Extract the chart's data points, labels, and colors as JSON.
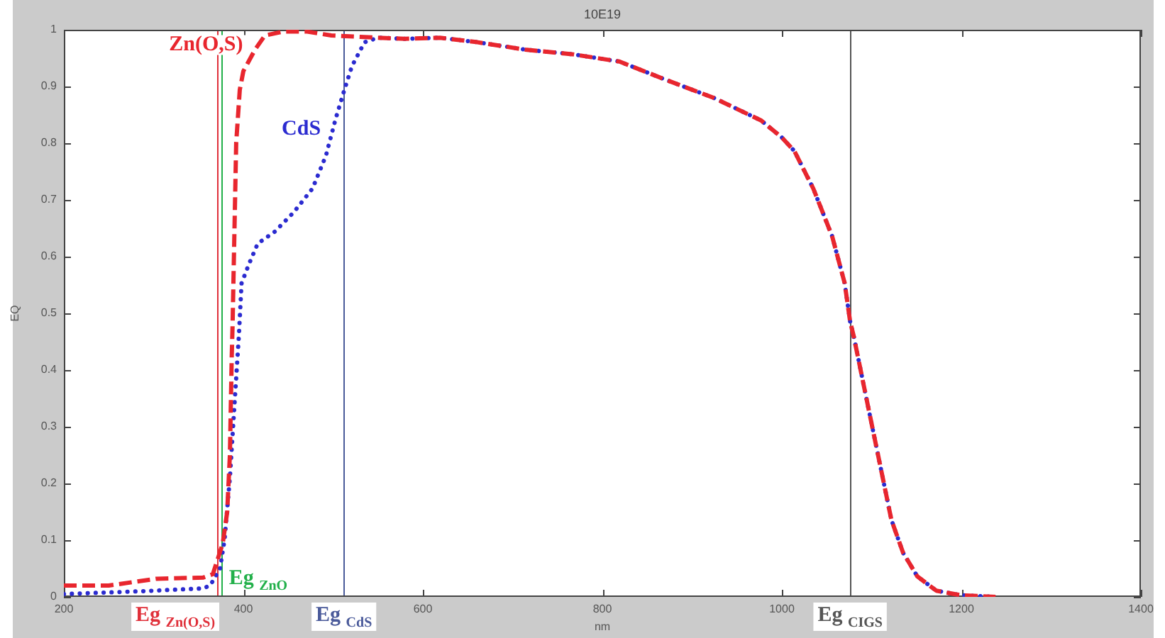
{
  "chart_data": {
    "type": "line",
    "title": "10E19",
    "xlabel": "nm",
    "ylabel": "EQ",
    "xlim": [
      200,
      1400
    ],
    "xticks": [
      200,
      400,
      600,
      800,
      1000,
      1200,
      1400
    ],
    "ylim": [
      0,
      1
    ],
    "yticks": [
      0,
      0.1,
      0.2,
      0.3,
      0.4,
      0.5,
      0.6,
      0.7,
      0.8,
      0.9,
      1
    ],
    "series": [
      {
        "name": "Zn(O,S)",
        "color": "#e8262e",
        "line_style": "dashed",
        "x": [
          200,
          250,
          303,
          355,
          366,
          377,
          382,
          385,
          387,
          388,
          390,
          392,
          396,
          400,
          413,
          424,
          445,
          470,
          498,
          550,
          580,
          619,
          661,
          714,
          766,
          819,
          872,
          924,
          977,
          1000,
          1014,
          1035,
          1056,
          1070,
          1076,
          1080,
          1096,
          1109,
          1122,
          1135,
          1151,
          1172,
          1199,
          1238
        ],
        "values": [
          0.02,
          0.02,
          0.032,
          0.034,
          0.04,
          0.094,
          0.15,
          0.25,
          0.42,
          0.48,
          0.64,
          0.8,
          0.894,
          0.927,
          0.965,
          0.99,
          0.997,
          0.997,
          0.99,
          0.986,
          0.984,
          0.986,
          0.978,
          0.965,
          0.957,
          0.944,
          0.911,
          0.88,
          0.84,
          0.81,
          0.786,
          0.72,
          0.636,
          0.553,
          0.486,
          0.46,
          0.336,
          0.236,
          0.136,
          0.078,
          0.036,
          0.011,
          0.003,
          0
        ]
      },
      {
        "name": "CdS",
        "color": "#2b2bd0",
        "line_style": "dotted",
        "x": [
          200,
          287,
          355,
          363,
          374,
          379,
          385,
          390,
          395,
          398,
          406,
          416,
          435,
          456,
          477,
          492,
          503,
          511,
          521,
          535,
          550,
          580,
          619,
          661,
          714,
          766,
          819,
          872,
          924,
          977,
          1000,
          1014,
          1035,
          1056,
          1070,
          1076,
          1080,
          1096,
          1109,
          1122,
          1135,
          1151,
          1172,
          1199,
          1238
        ],
        "values": [
          0.005,
          0.01,
          0.015,
          0.02,
          0.05,
          0.1,
          0.21,
          0.336,
          0.46,
          0.553,
          0.586,
          0.623,
          0.644,
          0.678,
          0.72,
          0.778,
          0.844,
          0.886,
          0.936,
          0.978,
          0.986,
          0.984,
          0.986,
          0.978,
          0.965,
          0.957,
          0.944,
          0.911,
          0.88,
          0.84,
          0.81,
          0.786,
          0.72,
          0.636,
          0.553,
          0.486,
          0.46,
          0.336,
          0.236,
          0.136,
          0.078,
          0.036,
          0.011,
          0.003,
          0
        ]
      }
    ],
    "ref_lines": [
      {
        "axis": "x",
        "value": 370,
        "label": "Eg $_{Zn(O,S)}$",
        "color": "#e0303a"
      },
      {
        "axis": "x",
        "value": 376,
        "label": "Eg $_{ZnO}$",
        "color": "#22b04a"
      },
      {
        "axis": "x",
        "value": 512,
        "label": "Eg $_{CdS}$",
        "color": "#4a5a9a"
      },
      {
        "axis": "x",
        "value": 1076,
        "label": "Eg $_{CIGS}$",
        "color": "#555555"
      }
    ]
  }
}
